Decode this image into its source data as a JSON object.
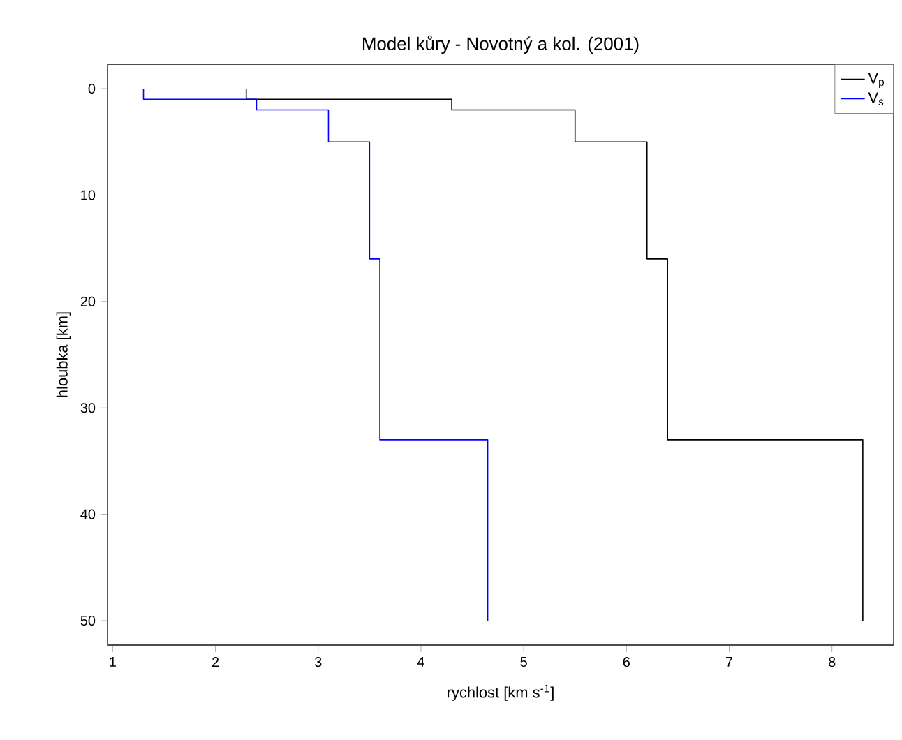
{
  "chart_data": {
    "type": "line",
    "title": "Model kůry - Novotný a kol. (2001)",
    "xlabel": "rychlost [km s$^{-1}$]",
    "ylabel": "hloubka [km]",
    "xlim": [
      0.95,
      8.6
    ],
    "ylim": [
      52.3,
      -2.3
    ],
    "xticks": [
      1,
      2,
      3,
      4,
      5,
      6,
      7,
      8
    ],
    "yticks": [
      0,
      10,
      20,
      30,
      40,
      50
    ],
    "grid": false,
    "legend": "top right",
    "marker": "none",
    "line_style": "solid",
    "series": [
      {
        "name": "V$_{p}$",
        "color": "#000000",
        "x": [
          2.3,
          2.3,
          4.3,
          4.3,
          5.5,
          5.5,
          6.2,
          6.2,
          6.4,
          6.4,
          8.3,
          8.3
        ],
        "values": [
          0,
          1,
          1,
          2,
          2,
          5,
          5,
          16,
          16,
          33,
          33,
          50
        ]
      },
      {
        "name": "V$_{s}$",
        "color": "#0000ff",
        "x": [
          1.3,
          1.3,
          2.4,
          2.4,
          3.1,
          3.1,
          3.5,
          3.5,
          3.6,
          3.6,
          4.65,
          4.65
        ],
        "values": [
          0,
          1,
          1,
          2,
          2,
          5,
          5,
          16,
          16,
          33,
          33,
          50
        ]
      }
    ]
  }
}
